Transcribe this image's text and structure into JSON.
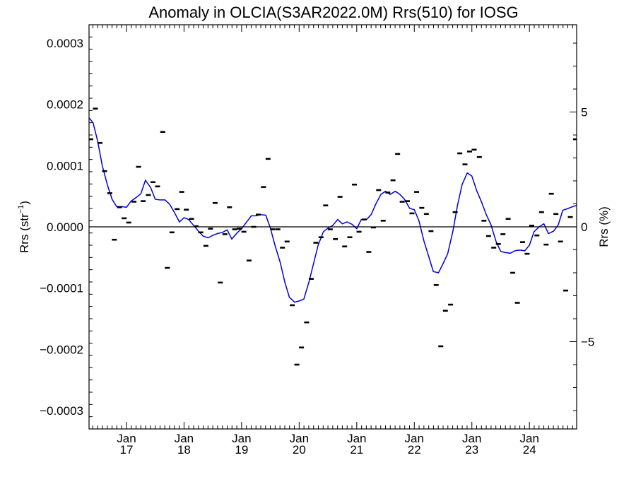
{
  "chart_data": {
    "type": "line",
    "title": "Anomaly in OLCIA(S3AR2022.0M) Rrs(510) for IOSG",
    "ylabel_left": "Rrs (str",
    "ylabel_left_sup": "−1",
    "ylabel_left_close": ")",
    "ylabel_right": "Rrs (%)",
    "xlim": [
      2016.35,
      2024.82
    ],
    "ylim": [
      -0.00033,
      0.00033
    ],
    "ylim_right": [
      -8.8,
      8.8
    ],
    "yticks": [
      {
        "value": 0.0003,
        "label": "0.0003"
      },
      {
        "value": 0.0002,
        "label": "0.0002"
      },
      {
        "value": 0.0001,
        "label": "0.0001"
      },
      {
        "value": 0.0,
        "label": "0.0000"
      },
      {
        "value": -0.0001,
        "label": "−0.0001"
      },
      {
        "value": -0.0002,
        "label": "−0.0002"
      },
      {
        "value": -0.0003,
        "label": "−0.0003"
      }
    ],
    "yticks_right": [
      {
        "value": 5,
        "label": "5"
      },
      {
        "value": 0,
        "label": "0"
      },
      {
        "value": -5,
        "label": "−5"
      }
    ],
    "xticks": [
      {
        "value": 2017.0,
        "month": "Jan",
        "year": "17"
      },
      {
        "value": 2018.0,
        "month": "Jan",
        "year": "18"
      },
      {
        "value": 2019.0,
        "month": "Jan",
        "year": "19"
      },
      {
        "value": 2020.0,
        "month": "Jan",
        "year": "20"
      },
      {
        "value": 2021.0,
        "month": "Jan",
        "year": "21"
      },
      {
        "value": 2022.0,
        "month": "Jan",
        "year": "22"
      },
      {
        "value": 2023.0,
        "month": "Jan",
        "year": "23"
      },
      {
        "value": 2024.0,
        "month": "Jan",
        "year": "24"
      }
    ],
    "zero_line": 0.0,
    "grid": false,
    "series": [
      {
        "kind": "markers",
        "color": "#000000",
        "points": [
          [
            2016.38,
            0.000143
          ],
          [
            2016.46,
            0.000193
          ],
          [
            2016.54,
            0.000137
          ],
          [
            2016.62,
            9.1e-05
          ],
          [
            2016.71,
            5.5e-05
          ],
          [
            2016.79,
            -2.1e-05
          ],
          [
            2016.88,
            3.2e-05
          ],
          [
            2016.96,
            1.4e-05
          ],
          [
            2017.04,
            7e-06
          ],
          [
            2017.13,
            4.1e-05
          ],
          [
            2017.21,
            9.8e-05
          ],
          [
            2017.29,
            4.2e-05
          ],
          [
            2017.38,
            5.2e-05
          ],
          [
            2017.46,
            7.3e-05
          ],
          [
            2017.54,
            6.6e-05
          ],
          [
            2017.63,
            0.000155
          ],
          [
            2017.71,
            -6.7e-05
          ],
          [
            2017.79,
            -9e-06
          ],
          [
            2017.88,
            2.9e-05
          ],
          [
            2017.96,
            5.7e-05
          ],
          [
            2018.04,
            2.8e-05
          ],
          [
            2018.13,
            1.3e-05
          ],
          [
            2018.21,
            1e-06
          ],
          [
            2018.29,
            -9e-06
          ],
          [
            2018.38,
            -3.1e-05
          ],
          [
            2018.46,
            -3e-06
          ],
          [
            2018.54,
            3.9e-05
          ],
          [
            2018.63,
            -9.1e-05
          ],
          [
            2018.71,
            -1.2e-05
          ],
          [
            2018.79,
            3.2e-05
          ],
          [
            2018.88,
            -4e-06
          ],
          [
            2018.96,
            -3e-06
          ],
          [
            2019.04,
            -8e-06
          ],
          [
            2019.13,
            -5.5e-05
          ],
          [
            2019.21,
            0.0
          ],
          [
            2019.29,
            2e-05
          ],
          [
            2019.38,
            6.5e-05
          ],
          [
            2019.46,
            0.000111
          ],
          [
            2019.54,
            -4e-06
          ],
          [
            2019.63,
            -4e-06
          ],
          [
            2019.71,
            -3.4e-05
          ],
          [
            2019.79,
            -2.4e-05
          ],
          [
            2019.88,
            -0.000128
          ],
          [
            2019.96,
            -0.000225
          ],
          [
            2020.04,
            -0.000197
          ],
          [
            2020.13,
            -0.000156
          ],
          [
            2020.21,
            -8.5e-05
          ],
          [
            2020.29,
            -2.6e-05
          ],
          [
            2020.38,
            -1.7e-05
          ],
          [
            2020.46,
            3.5e-05
          ],
          [
            2020.54,
            -4e-06
          ],
          [
            2020.63,
            -2e-05
          ],
          [
            2020.71,
            4.9e-05
          ],
          [
            2020.79,
            -3.2e-05
          ],
          [
            2020.88,
            -1.7e-05
          ],
          [
            2020.96,
            6.9e-05
          ],
          [
            2021.04,
            -8e-06
          ],
          [
            2021.13,
            1.2e-05
          ],
          [
            2021.21,
            -4.1e-05
          ],
          [
            2021.29,
            -1e-06
          ],
          [
            2021.38,
            6e-05
          ],
          [
            2021.46,
            1e-05
          ],
          [
            2021.54,
            5.6e-05
          ],
          [
            2021.63,
            7.6e-05
          ],
          [
            2021.71,
            0.000119
          ],
          [
            2021.79,
            4.1e-05
          ],
          [
            2021.88,
            4.2e-05
          ],
          [
            2021.96,
            2.2e-05
          ],
          [
            2022.04,
            5.7e-05
          ],
          [
            2022.13,
            3.1e-05
          ],
          [
            2022.21,
            2.1e-05
          ],
          [
            2022.29,
            -7e-06
          ],
          [
            2022.38,
            -9.5e-05
          ],
          [
            2022.46,
            -0.000195
          ],
          [
            2022.54,
            -0.000137
          ],
          [
            2022.63,
            -0.000127
          ],
          [
            2022.71,
            2.4e-05
          ],
          [
            2022.79,
            0.00012
          ],
          [
            2022.88,
            0.000102
          ],
          [
            2022.96,
            0.000123
          ],
          [
            2023.04,
            0.000126
          ],
          [
            2023.13,
            0.000114
          ],
          [
            2023.21,
            1e-05
          ],
          [
            2023.29,
            -1.5e-05
          ],
          [
            2023.38,
            -3.4e-05
          ],
          [
            2023.46,
            -2.8e-05
          ],
          [
            2023.54,
            -1.2e-05
          ],
          [
            2023.63,
            1.3e-05
          ],
          [
            2023.71,
            -7.5e-05
          ],
          [
            2023.79,
            -0.000124
          ],
          [
            2023.88,
            -2.5e-05
          ],
          [
            2023.96,
            -4.4e-05
          ],
          [
            2024.04,
            2e-06
          ],
          [
            2024.13,
            -1.4e-05
          ],
          [
            2024.21,
            2.4e-05
          ],
          [
            2024.29,
            -2.9e-05
          ],
          [
            2024.38,
            5.4e-05
          ],
          [
            2024.46,
            2.1e-05
          ],
          [
            2024.54,
            -2.4e-05
          ],
          [
            2024.63,
            -0.000104
          ],
          [
            2024.71,
            1.6e-05
          ],
          [
            2024.8,
            0.000143
          ]
        ]
      },
      {
        "kind": "line",
        "color": "#0000dd",
        "points": [
          [
            2016.35,
            0.000178
          ],
          [
            2016.42,
            0.00017
          ],
          [
            2016.5,
            0.00014
          ],
          [
            2016.58,
            0.0001
          ],
          [
            2016.67,
            6.8e-05
          ],
          [
            2016.75,
            4.5e-05
          ],
          [
            2016.83,
            3.3e-05
          ],
          [
            2016.92,
            3.3e-05
          ],
          [
            2017.0,
            3.2e-05
          ],
          [
            2017.08,
            4.2e-05
          ],
          [
            2017.17,
            4.8e-05
          ],
          [
            2017.25,
            5.4e-05
          ],
          [
            2017.33,
            7.6e-05
          ],
          [
            2017.42,
            6.4e-05
          ],
          [
            2017.5,
            4.5e-05
          ],
          [
            2017.58,
            4.4e-05
          ],
          [
            2017.67,
            4.4e-05
          ],
          [
            2017.75,
            3.7e-05
          ],
          [
            2017.83,
            2.4e-05
          ],
          [
            2017.92,
            8e-06
          ],
          [
            2018.0,
            1.5e-05
          ],
          [
            2018.08,
            1.2e-05
          ],
          [
            2018.17,
            2e-06
          ],
          [
            2018.25,
            -7e-06
          ],
          [
            2018.33,
            -1.5e-05
          ],
          [
            2018.42,
            -1.8e-05
          ],
          [
            2018.5,
            -1.4e-05
          ],
          [
            2018.58,
            -1.1e-05
          ],
          [
            2018.67,
            -9e-06
          ],
          [
            2018.75,
            -5e-06
          ],
          [
            2018.83,
            -2e-05
          ],
          [
            2018.92,
            -1e-05
          ],
          [
            2019.0,
            -3e-06
          ],
          [
            2019.08,
            7e-06
          ],
          [
            2019.17,
            1.8e-05
          ],
          [
            2019.25,
            1.8e-05
          ],
          [
            2019.33,
            2e-05
          ],
          [
            2019.42,
            1.9e-05
          ],
          [
            2019.5,
            -2e-06
          ],
          [
            2019.58,
            -3e-05
          ],
          [
            2019.67,
            -5.8e-05
          ],
          [
            2019.75,
            -9e-05
          ],
          [
            2019.83,
            -0.000115
          ],
          [
            2019.92,
            -0.000123
          ],
          [
            2020.0,
            -0.000121
          ],
          [
            2020.08,
            -0.000118
          ],
          [
            2020.17,
            -9e-05
          ],
          [
            2020.25,
            -6e-05
          ],
          [
            2020.33,
            -3e-05
          ],
          [
            2020.42,
            -8e-06
          ],
          [
            2020.5,
            -2e-06
          ],
          [
            2020.58,
            2e-06
          ],
          [
            2020.67,
            1.2e-05
          ],
          [
            2020.75,
            5e-06
          ],
          [
            2020.83,
            8e-06
          ],
          [
            2020.92,
            4e-06
          ],
          [
            2021.0,
            -3e-06
          ],
          [
            2021.08,
            1.2e-05
          ],
          [
            2021.17,
            1.2e-05
          ],
          [
            2021.25,
            2e-05
          ],
          [
            2021.33,
            3.7e-05
          ],
          [
            2021.42,
            5.3e-05
          ],
          [
            2021.5,
            5.8e-05
          ],
          [
            2021.58,
            5.3e-05
          ],
          [
            2021.67,
            5.8e-05
          ],
          [
            2021.75,
            5.3e-05
          ],
          [
            2021.83,
            4.5e-05
          ],
          [
            2021.92,
            3e-05
          ],
          [
            2022.0,
            2.8e-05
          ],
          [
            2022.08,
            1e-05
          ],
          [
            2022.17,
            -2.4e-05
          ],
          [
            2022.25,
            -4.8e-05
          ],
          [
            2022.33,
            -7.3e-05
          ],
          [
            2022.42,
            -7.5e-05
          ],
          [
            2022.5,
            -6e-05
          ],
          [
            2022.58,
            -4.4e-05
          ],
          [
            2022.67,
            -7e-06
          ],
          [
            2022.75,
            3.5e-05
          ],
          [
            2022.83,
            6.9e-05
          ],
          [
            2022.92,
            8.8e-05
          ],
          [
            2023.0,
            8.3e-05
          ],
          [
            2023.08,
            6e-05
          ],
          [
            2023.17,
            4e-05
          ],
          [
            2023.25,
            2e-05
          ],
          [
            2023.33,
            4e-06
          ],
          [
            2023.42,
            -2.4e-05
          ],
          [
            2023.5,
            -4e-05
          ],
          [
            2023.58,
            -4.2e-05
          ],
          [
            2023.67,
            -4.3e-05
          ],
          [
            2023.75,
            -3.9e-05
          ],
          [
            2023.83,
            -3.8e-05
          ],
          [
            2023.92,
            -3.9e-05
          ],
          [
            2024.0,
            -3e-05
          ],
          [
            2024.08,
            -8e-06
          ],
          [
            2024.17,
            0.0
          ],
          [
            2024.25,
            5e-06
          ],
          [
            2024.33,
            -1.1e-05
          ],
          [
            2024.42,
            -7e-06
          ],
          [
            2024.5,
            3e-06
          ],
          [
            2024.58,
            2.7e-05
          ],
          [
            2024.67,
            3e-05
          ],
          [
            2024.75,
            3.3e-05
          ],
          [
            2024.82,
            3.5e-05
          ]
        ]
      }
    ]
  }
}
